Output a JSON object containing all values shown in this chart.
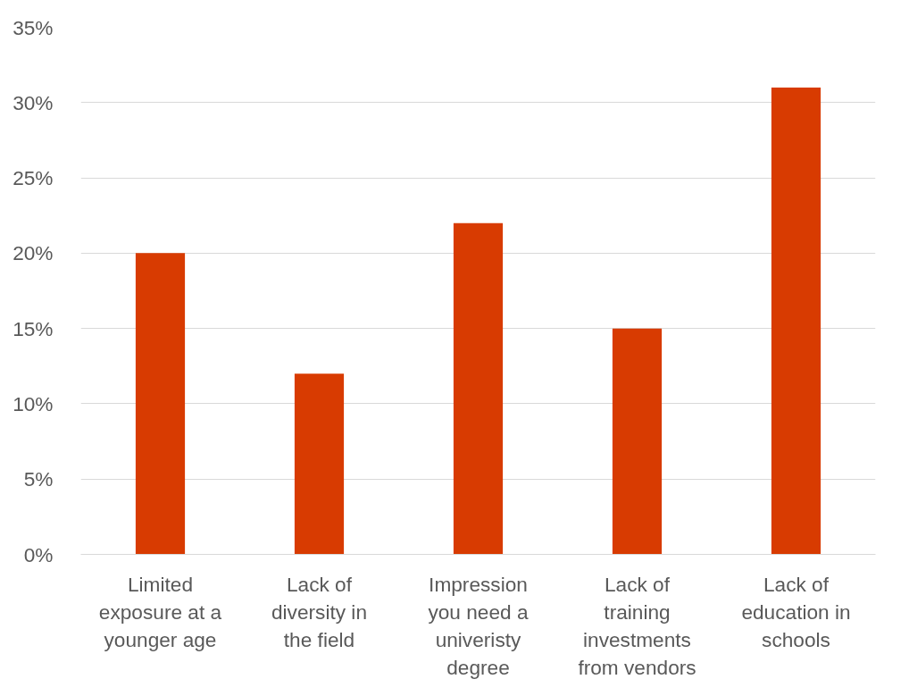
{
  "chart_data": {
    "type": "bar",
    "categories": [
      "Limited exposure at a younger age",
      "Lack of diversity in the field",
      "Impression you need a univeristy degree",
      "Lack of training investments from vendors",
      "Lack of education in schools"
    ],
    "values": [
      20,
      12,
      22,
      15,
      31
    ],
    "color": "#d83b01",
    "ylim": [
      0,
      35
    ],
    "yticks": [
      {
        "value": 0,
        "label": "0%"
      },
      {
        "value": 5,
        "label": "5%"
      },
      {
        "value": 10,
        "label": "10%"
      },
      {
        "value": 15,
        "label": "15%"
      },
      {
        "value": 20,
        "label": "20%"
      },
      {
        "value": 25,
        "label": "25%"
      },
      {
        "value": 30,
        "label": "30%"
      },
      {
        "value": 35,
        "label": "35%"
      }
    ],
    "grid": "y"
  }
}
